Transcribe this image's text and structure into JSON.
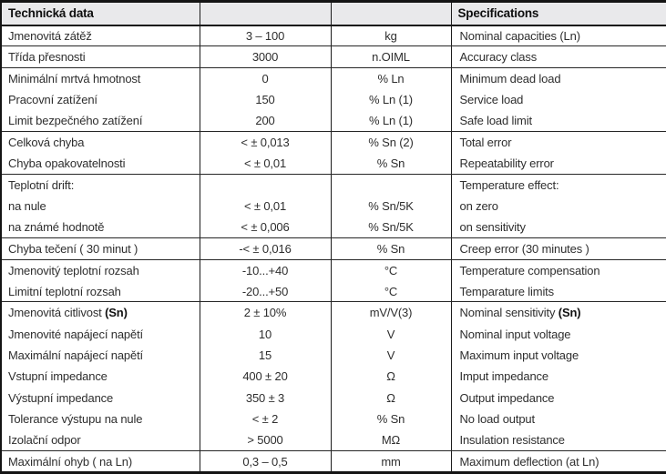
{
  "table": {
    "header": {
      "cs_title": "Technická data",
      "value_title": "",
      "unit_title": "",
      "en_title": "Specifications"
    },
    "rows": [
      {
        "cs": "Jmenovitá zátěž",
        "value": "3 – 100",
        "unit": "kg",
        "en": "Nominal capacities (Ln)",
        "sep_after": true
      },
      {
        "cs": "Třída přesnosti",
        "value": "3000",
        "unit": "n.OIML",
        "en": "Accuracy class",
        "sep_after": true
      },
      {
        "cs": "Minimální mrtvá hmotnost",
        "value": "0",
        "unit": "% Ln",
        "en": "Minimum dead load",
        "sep_after": false
      },
      {
        "cs": "Pracovní zatížení",
        "value": "150",
        "unit": "% Ln (1)",
        "en": "Service load",
        "sep_after": false
      },
      {
        "cs": "Limit bezpečného zatížení",
        "value": "200",
        "unit": "% Ln (1)",
        "en": "Safe load limit",
        "sep_after": true
      },
      {
        "cs": "Celková chyba",
        "value": "< ± 0,013",
        "unit": "% Sn (2)",
        "en": "Total error",
        "sep_after": false
      },
      {
        "cs": "Chyba opakovatelnosti",
        "value": "< ± 0,01",
        "unit": "% Sn",
        "en": "Repeatability error",
        "sep_after": true
      },
      {
        "cs": "Teplotní drift:",
        "value": "",
        "unit": "",
        "en": "Temperature effect:",
        "sep_after": false
      },
      {
        "cs": "na nule",
        "value": "< ± 0,01",
        "unit": "% Sn/5K",
        "en": "on zero",
        "sep_after": false
      },
      {
        "cs": "na známé hodnotě",
        "value": "< ± 0,006",
        "unit": "% Sn/5K",
        "en": "on sensitivity",
        "sep_after": true
      },
      {
        "cs": "Chyba tečení ( 30 minut )",
        "value": "-< ± 0,016",
        "unit": "% Sn",
        "en": "Creep error (30 minutes )",
        "sep_after": true
      },
      {
        "cs": "Jmenovitý teplotní rozsah",
        "value": "-10...+40",
        "unit": "°C",
        "en": "Temperature compensation",
        "sep_after": false
      },
      {
        "cs": "Limitní teplotní rozsah",
        "value": "-20...+50",
        "unit": "°C",
        "en": "Temparature limits",
        "sep_after": true
      },
      {
        "cs": "Jmenovitá citlivost ",
        "cs_bold": "(Sn)",
        "value": "2 ± 10%",
        "unit": "mV/V(3)",
        "en": "Nominal sensitivity ",
        "en_bold": "(Sn)",
        "sep_after": false
      },
      {
        "cs": "Jmenovité napájecí napětí",
        "value": "10",
        "unit": "V",
        "en": "Nominal input voltage",
        "sep_after": false
      },
      {
        "cs": "Maximální napájecí napětí",
        "value": "15",
        "unit": "V",
        "en": "Maximum input voltage",
        "sep_after": false
      },
      {
        "cs": "Vstupní impedance",
        "value": "400 ± 20",
        "unit": "Ω",
        "en": "Imput impedance",
        "sep_after": false
      },
      {
        "cs": "Výstupní impedance",
        "value": "350 ± 3",
        "unit": "Ω",
        "en": "Output impedance",
        "sep_after": false
      },
      {
        "cs": "Tolerance výstupu na nule",
        "value": "< ± 2",
        "unit": "% Sn",
        "en": "No load output",
        "sep_after": false
      },
      {
        "cs": "Izolační odpor",
        "value": "> 5000",
        "unit": "MΩ",
        "en": "Insulation resistance",
        "sep_after": true
      },
      {
        "cs": "Maximální ohyb ( na Ln)",
        "value": "0,3 – 0,5",
        "unit": "mm",
        "en": "Maximum deflection (at Ln)",
        "sep_after": false
      }
    ]
  },
  "colors": {
    "header_bg": "#e9e9eb",
    "border": "#141414",
    "text": "#2e2e2e"
  }
}
